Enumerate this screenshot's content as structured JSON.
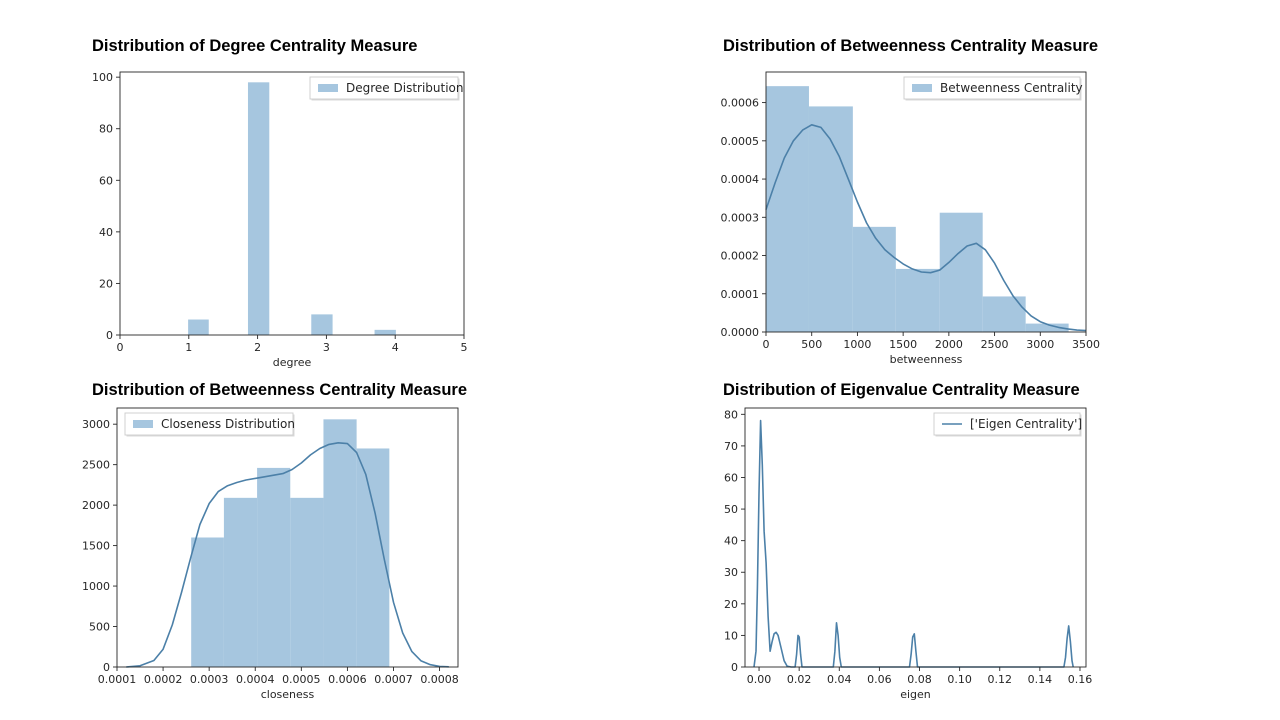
{
  "colors": {
    "bar": "#a6c6df",
    "line": "#4c80a8",
    "axis": "#262626",
    "legend_border": "#cccccc"
  },
  "chart_data": [
    {
      "id": "degree",
      "type": "bar",
      "title": "Distribution of Degree Centrality Measure",
      "xlabel": "degree",
      "ylabel": "",
      "xlim": [
        0,
        5
      ],
      "ylim": [
        0,
        102
      ],
      "xticks": [
        0,
        1,
        2,
        3,
        4,
        5
      ],
      "xtick_labels": [
        "0",
        "1",
        "2",
        "3",
        "4",
        "5"
      ],
      "yticks": [
        0,
        20,
        40,
        60,
        80,
        100
      ],
      "ytick_labels": [
        "0",
        "20",
        "40",
        "60",
        "80",
        "100"
      ],
      "bins": [
        {
          "x0": 0.99,
          "x1": 1.29,
          "value": 6
        },
        {
          "x0": 1.86,
          "x1": 2.17,
          "value": 98
        },
        {
          "x0": 2.78,
          "x1": 3.09,
          "value": 8
        },
        {
          "x0": 3.7,
          "x1": 4.01,
          "value": 2
        }
      ],
      "kde": [],
      "legend": {
        "label": "Degree Distribution",
        "kind": "patch",
        "position": "upper right"
      }
    },
    {
      "id": "betweenness",
      "type": "bar",
      "title": "Distribution of Betweenness Centrality Measure",
      "xlabel": "betweenness",
      "ylabel": "",
      "xlim": [
        0,
        3500
      ],
      "ylim": [
        0,
        0.00068
      ],
      "xticks": [
        0,
        500,
        1000,
        1500,
        2000,
        2500,
        3000,
        3500
      ],
      "xtick_labels": [
        "0",
        "500",
        "1000",
        "1500",
        "2000",
        "2500",
        "3000",
        "3500"
      ],
      "yticks": [
        0,
        0.0001,
        0.0002,
        0.0003,
        0.0004,
        0.0005,
        0.0006
      ],
      "ytick_labels": [
        "0.0000",
        "0.0001",
        "0.0002",
        "0.0003",
        "0.0004",
        "0.0005",
        "0.0006"
      ],
      "bins": [
        {
          "x0": 0,
          "x1": 470,
          "value": 0.000643
        },
        {
          "x0": 470,
          "x1": 950,
          "value": 0.00059
        },
        {
          "x0": 950,
          "x1": 1420,
          "value": 0.000275
        },
        {
          "x0": 1420,
          "x1": 1900,
          "value": 0.000165
        },
        {
          "x0": 1900,
          "x1": 2370,
          "value": 0.000312
        },
        {
          "x0": 2370,
          "x1": 2840,
          "value": 9.3e-05
        },
        {
          "x0": 2840,
          "x1": 3310,
          "value": 2.2e-05
        }
      ],
      "kde": [
        [
          0,
          0.00032
        ],
        [
          100,
          0.00039
        ],
        [
          200,
          0.000455
        ],
        [
          300,
          0.0005
        ],
        [
          400,
          0.000528
        ],
        [
          500,
          0.000542
        ],
        [
          600,
          0.000535
        ],
        [
          700,
          0.000505
        ],
        [
          800,
          0.00046
        ],
        [
          900,
          0.0004
        ],
        [
          1000,
          0.00034
        ],
        [
          1100,
          0.000285
        ],
        [
          1200,
          0.000245
        ],
        [
          1300,
          0.000215
        ],
        [
          1400,
          0.000195
        ],
        [
          1500,
          0.000178
        ],
        [
          1600,
          0.000165
        ],
        [
          1700,
          0.000157
        ],
        [
          1800,
          0.000155
        ],
        [
          1900,
          0.000162
        ],
        [
          2000,
          0.000182
        ],
        [
          2100,
          0.000205
        ],
        [
          2200,
          0.000225
        ],
        [
          2300,
          0.000232
        ],
        [
          2400,
          0.000215
        ],
        [
          2500,
          0.00018
        ],
        [
          2600,
          0.000135
        ],
        [
          2700,
          9.5e-05
        ],
        [
          2800,
          6.5e-05
        ],
        [
          2900,
          4.2e-05
        ],
        [
          3000,
          2.7e-05
        ],
        [
          3100,
          1.8e-05
        ],
        [
          3200,
          1.2e-05
        ],
        [
          3300,
          8e-06
        ],
        [
          3400,
          5e-06
        ],
        [
          3500,
          4e-06
        ]
      ],
      "legend": {
        "label": "Betweenness Centrality",
        "kind": "patch",
        "position": "upper right"
      }
    },
    {
      "id": "closeness",
      "type": "bar",
      "title": "Distribution of Betweenness Centrality Measure",
      "xlabel": "closeness",
      "ylabel": "",
      "xlim": [
        0.0001,
        0.00084
      ],
      "ylim": [
        0,
        3200
      ],
      "xticks": [
        0.0001,
        0.0002,
        0.0003,
        0.0004,
        0.0005,
        0.0006,
        0.0007,
        0.0008
      ],
      "xtick_labels": [
        "0.0001",
        "0.0002",
        "0.0003",
        "0.0004",
        "0.0005",
        "0.0006",
        "0.0007",
        "0.0008"
      ],
      "yticks": [
        0,
        500,
        1000,
        1500,
        2000,
        2500,
        3000
      ],
      "ytick_labels": [
        "0",
        "500",
        "1000",
        "1500",
        "2000",
        "2500",
        "3000"
      ],
      "bins": [
        {
          "x0": 0.000261,
          "x1": 0.000332,
          "value": 1600
        },
        {
          "x0": 0.000332,
          "x1": 0.000404,
          "value": 2090
        },
        {
          "x0": 0.000404,
          "x1": 0.000476,
          "value": 2460
        },
        {
          "x0": 0.000476,
          "x1": 0.000548,
          "value": 2090
        },
        {
          "x0": 0.000548,
          "x1": 0.00062,
          "value": 3060
        },
        {
          "x0": 0.00062,
          "x1": 0.000691,
          "value": 2700
        }
      ],
      "kde": [
        [
          0.00012,
          0
        ],
        [
          0.00015,
          15
        ],
        [
          0.00018,
          80
        ],
        [
          0.0002,
          220
        ],
        [
          0.00022,
          520
        ],
        [
          0.00024,
          920
        ],
        [
          0.00026,
          1350
        ],
        [
          0.00028,
          1760
        ],
        [
          0.0003,
          2020
        ],
        [
          0.00032,
          2170
        ],
        [
          0.00034,
          2240
        ],
        [
          0.00036,
          2280
        ],
        [
          0.00038,
          2310
        ],
        [
          0.0004,
          2330
        ],
        [
          0.00042,
          2350
        ],
        [
          0.00044,
          2370
        ],
        [
          0.00046,
          2390
        ],
        [
          0.00048,
          2440
        ],
        [
          0.0005,
          2520
        ],
        [
          0.00052,
          2620
        ],
        [
          0.00054,
          2700
        ],
        [
          0.00056,
          2750
        ],
        [
          0.00058,
          2770
        ],
        [
          0.0006,
          2760
        ],
        [
          0.00062,
          2650
        ],
        [
          0.00064,
          2380
        ],
        [
          0.00066,
          1900
        ],
        [
          0.00068,
          1330
        ],
        [
          0.0007,
          800
        ],
        [
          0.00072,
          420
        ],
        [
          0.00074,
          190
        ],
        [
          0.00076,
          75
        ],
        [
          0.00078,
          28
        ],
        [
          0.0008,
          8
        ],
        [
          0.00082,
          2
        ]
      ],
      "legend": {
        "label": "Closeness Distribution",
        "kind": "patch",
        "position": "upper left"
      }
    },
    {
      "id": "eigen",
      "type": "line",
      "title": "Distribution of Eigenvalue Centrality Measure",
      "xlabel": "eigen",
      "ylabel": "",
      "xlim": [
        -0.007,
        0.163
      ],
      "ylim": [
        0,
        82
      ],
      "xticks": [
        0,
        0.02,
        0.04,
        0.06,
        0.08,
        0.1,
        0.12,
        0.14,
        0.16
      ],
      "xtick_labels": [
        "0.00",
        "0.02",
        "0.04",
        "0.06",
        "0.08",
        "0.10",
        "0.12",
        "0.14",
        "0.16"
      ],
      "yticks": [
        0,
        10,
        20,
        30,
        40,
        50,
        60,
        70,
        80
      ],
      "ytick_labels": [
        "0",
        "10",
        "20",
        "30",
        "40",
        "50",
        "60",
        "70",
        "80"
      ],
      "bins": [],
      "kde": [
        [
          -0.0025,
          0
        ],
        [
          -0.0015,
          5
        ],
        [
          -0.0008,
          25
        ],
        [
          0,
          55
        ],
        [
          0.0008,
          78
        ],
        [
          0.0016,
          64
        ],
        [
          0.0025,
          43
        ],
        [
          0.0035,
          33
        ],
        [
          0.0045,
          16
        ],
        [
          0.0055,
          5
        ],
        [
          0.0065,
          8
        ],
        [
          0.0075,
          10.5
        ],
        [
          0.0085,
          11
        ],
        [
          0.0095,
          10
        ],
        [
          0.011,
          6
        ],
        [
          0.0125,
          2
        ],
        [
          0.014,
          0.3
        ],
        [
          0.016,
          0
        ],
        [
          0.018,
          0
        ],
        [
          0.0187,
          4
        ],
        [
          0.0194,
          10
        ],
        [
          0.02,
          9.5
        ],
        [
          0.0207,
          4
        ],
        [
          0.0214,
          0
        ],
        [
          0.037,
          0
        ],
        [
          0.0378,
          5
        ],
        [
          0.0386,
          14
        ],
        [
          0.0394,
          10
        ],
        [
          0.0402,
          3
        ],
        [
          0.041,
          0
        ],
        [
          0.075,
          0
        ],
        [
          0.0758,
          4
        ],
        [
          0.0766,
          9.5
        ],
        [
          0.0774,
          10.5
        ],
        [
          0.0782,
          5
        ],
        [
          0.079,
          0
        ],
        [
          0.152,
          0
        ],
        [
          0.1528,
          3
        ],
        [
          0.1536,
          9
        ],
        [
          0.1544,
          13
        ],
        [
          0.1552,
          8
        ],
        [
          0.156,
          2
        ],
        [
          0.1566,
          0
        ]
      ],
      "legend": {
        "label": "['Eigen Centrality']",
        "kind": "line",
        "position": "upper right"
      }
    }
  ]
}
